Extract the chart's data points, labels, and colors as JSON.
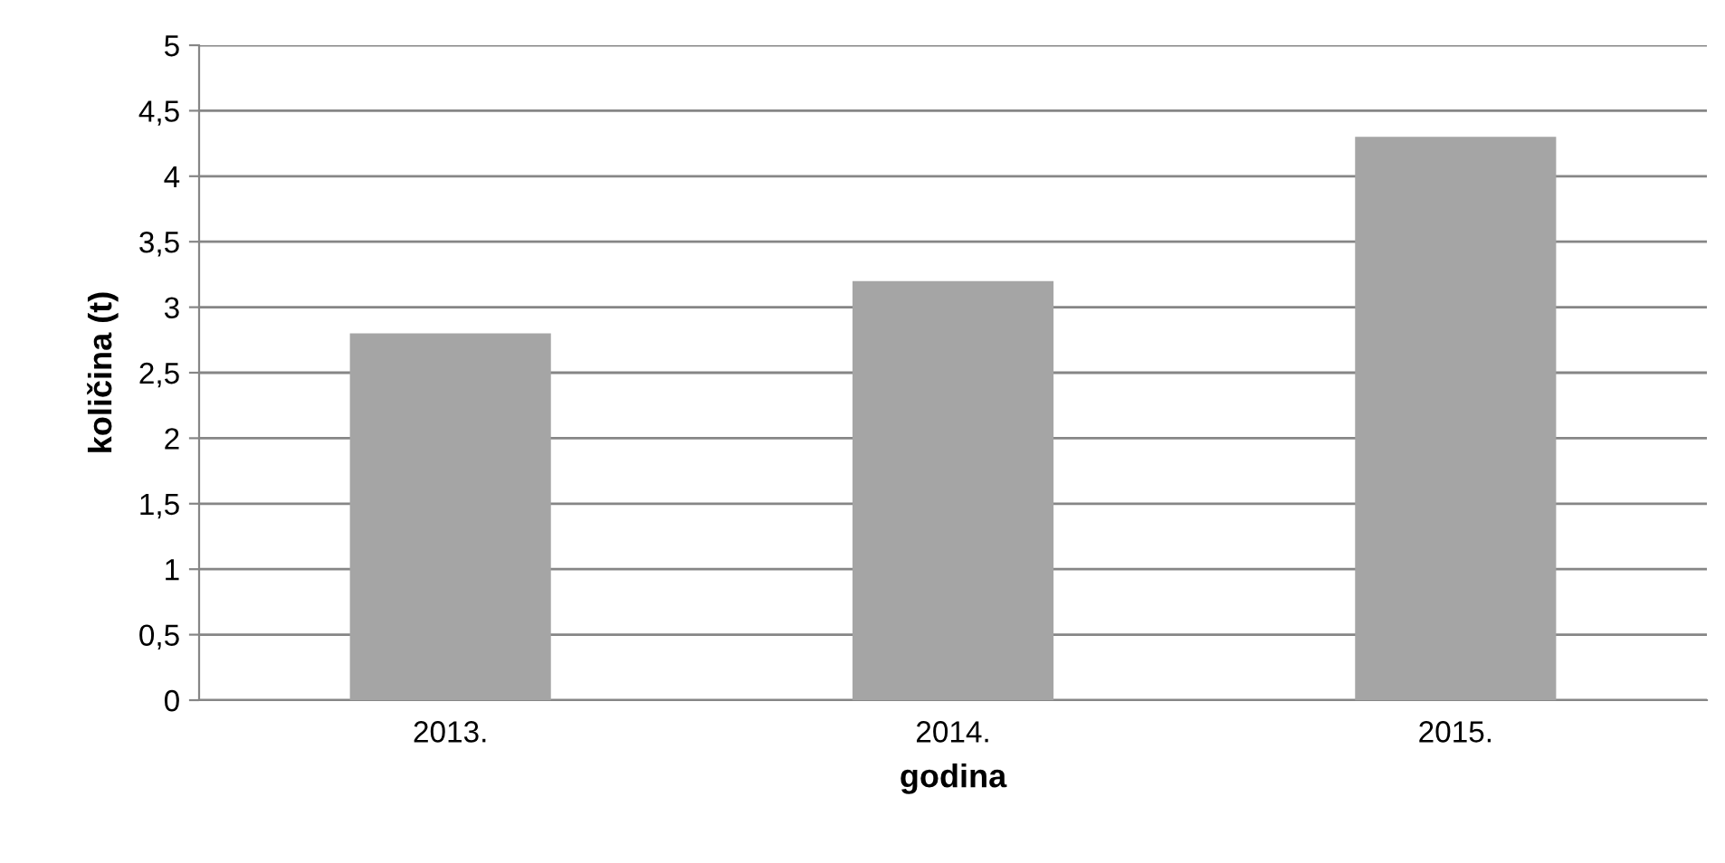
{
  "chart_data": {
    "type": "bar",
    "xlabel": "godina",
    "ylabel": "količina (t)",
    "categories": [
      "2013.",
      "2014.",
      "2015."
    ],
    "values": [
      2.8,
      3.2,
      4.3
    ],
    "color": "#a5a5a5",
    "ylim": [
      0,
      5
    ],
    "yticks": [
      0,
      {
        "value": 0.5,
        "label": "0,5"
      },
      1,
      {
        "value": 1.5,
        "label": "1,5"
      },
      2,
      {
        "value": 2.5,
        "label": "2,5"
      },
      3,
      {
        "value": 3.5,
        "label": "3,5"
      },
      4,
      {
        "value": 4.5,
        "label": "4,5"
      },
      5
    ],
    "grid": "y"
  }
}
